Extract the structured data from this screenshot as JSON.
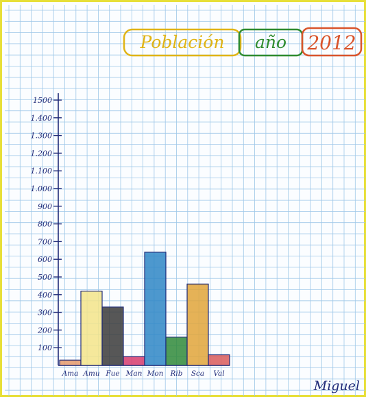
{
  "title": {
    "part1": "Población",
    "part2": "año",
    "part3": "2012"
  },
  "signature": "Miguel",
  "colors": {
    "grid": "#9ec7e8",
    "axis": "#1f2a78",
    "ink": "#1f2a78",
    "title1": "#e0b415",
    "title2": "#2e8b2e",
    "title3": "#d9542b",
    "frame": "#e7df39"
  },
  "chart_data": {
    "type": "bar",
    "title": "Población año 2012",
    "categories": [
      "Ama",
      "Amu",
      "Fue",
      "Man",
      "Mon",
      "Rib",
      "Sca",
      "Val"
    ],
    "values": [
      30,
      420,
      330,
      50,
      640,
      160,
      460,
      60
    ],
    "colors": [
      "#e59a6c",
      "#f3e48a",
      "#3a3a3a",
      "#d63b6d",
      "#2e86c6",
      "#2f8a3a",
      "#e0a53a",
      "#d95a5a"
    ],
    "y_tick_labels": [
      "100",
      "200",
      "300",
      "400",
      "500",
      "600",
      "700",
      "800",
      "900",
      "1.000",
      "1.100",
      "1.200",
      "1.300",
      "1.400",
      "1500"
    ],
    "y_tick_values": [
      100,
      200,
      300,
      400,
      500,
      600,
      700,
      800,
      900,
      1000,
      1100,
      1200,
      1300,
      1400,
      1500
    ],
    "ylim": [
      0,
      1500
    ],
    "grid": true
  }
}
